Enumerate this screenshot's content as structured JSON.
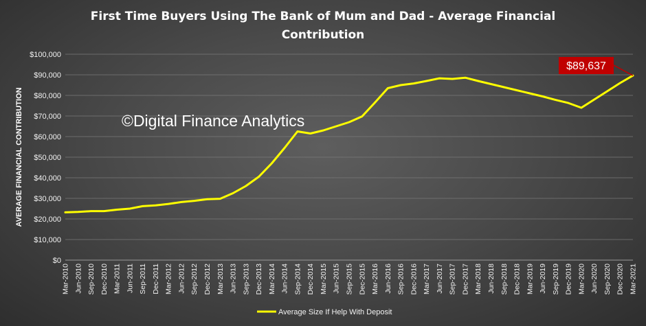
{
  "chart_data": {
    "type": "line",
    "title_lines": [
      "First Time Buyers Using The Bank of Mum and Dad - Average Financial",
      "Contribution"
    ],
    "ylabel": "AVERAGE FINANCIAL CONTRIBUTION",
    "xlabel": "",
    "ylim": [
      0,
      100000
    ],
    "y_ticks": [
      "$0",
      "$10,000",
      "$20,000",
      "$30,000",
      "$40,000",
      "$50,000",
      "$60,000",
      "$70,000",
      "$80,000",
      "$90,000",
      "$100,000"
    ],
    "categories": [
      "Mar-2010",
      "Jun-2010",
      "Sep-2010",
      "Dec-2010",
      "Mar-2011",
      "Jun-2011",
      "Sep-2011",
      "Dec-2011",
      "Mar-2012",
      "Jun-2012",
      "Sep-2012",
      "Dec-2012",
      "Mar-2013",
      "Jun-2013",
      "Sep-2013",
      "Dec-2013",
      "Mar-2014",
      "Jun-2014",
      "Sep-2014",
      "Dec-2014",
      "Mar-2015",
      "Jun-2015",
      "Sep-2015",
      "Dec-2015",
      "Mar-2016",
      "Jun-2016",
      "Sep-2016",
      "Dec-2016",
      "Mar-2017",
      "Jun-2017",
      "Sep-2017",
      "Dec-2017",
      "Mar-2018",
      "Jun-2018",
      "Sep-2018",
      "Dec-2018",
      "Mar-2019",
      "Jun-2019",
      "Sep-2019",
      "Dec-2019",
      "Mar-2020",
      "Jun-2020",
      "Sep-2020",
      "Dec-2020",
      "Mar-2021"
    ],
    "series": [
      {
        "name": "Average Size If Help With Deposit",
        "color": "#ffff00",
        "values": [
          23200,
          23400,
          23800,
          23800,
          24500,
          25000,
          26200,
          26600,
          27300,
          28200,
          28800,
          29600,
          29800,
          32500,
          36000,
          40500,
          47000,
          54500,
          62500,
          61500,
          63000,
          65000,
          67000,
          69800,
          76500,
          83500,
          85000,
          85800,
          87000,
          88300,
          88000,
          88600,
          87000,
          85500,
          84000,
          82500,
          81000,
          79500,
          77800,
          76300,
          74000,
          78000,
          82000,
          86000,
          89637
        ]
      }
    ],
    "callout": {
      "label": "$89,637",
      "category": "Mar-2021",
      "color": "#c00000"
    },
    "watermark": "©Digital Finance Analytics",
    "legend_position": "bottom",
    "grid": true
  }
}
